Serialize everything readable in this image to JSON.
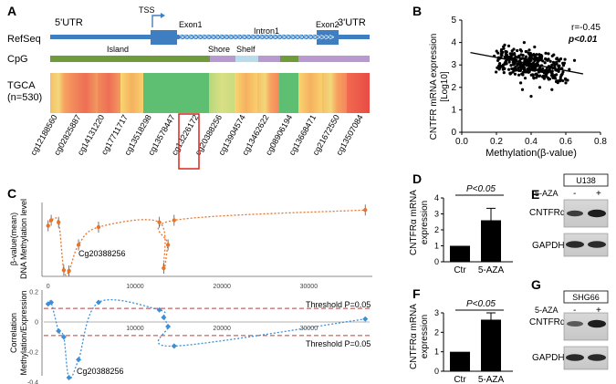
{
  "panel_labels": {
    "a": "A",
    "b": "B",
    "c": "C",
    "d": "D",
    "e": "E",
    "f": "F",
    "g": "G"
  },
  "panel_a": {
    "utr5": "5'UTR",
    "utr3": "3'UTR",
    "tss": "TSS",
    "exon1": "Exon1",
    "intron1": "Intron1",
    "exon2": "Exon2",
    "row_refseq": "RefSeq",
    "row_cpg": "CpG",
    "row_tgca_line1": "TGCA",
    "row_tgca_line2": "(n=530)",
    "cpg_island": "Island",
    "cpg_shore": "Shore",
    "cpg_shelf": "Shelf",
    "probes": [
      "cg12188560",
      "cg02825887",
      "cg14131220",
      "cg17711717",
      "cg13518298",
      "cg13578447",
      "cg13226172",
      "cg20388256",
      "cg13904574",
      "cg13462622",
      "cg08906194",
      "cg13668471",
      "cg21672550",
      "cg13507084"
    ],
    "highlighted_probe": "cg20388256",
    "colors": {
      "gene_blue": "#3f7fc1",
      "island": "#6f9b3a",
      "shore": "#b89ad1",
      "shelf": "#b7dcec",
      "highlight": "#d9261c"
    }
  },
  "panel_b": {
    "stat_r": "r=-0.45",
    "stat_p": "p<0.01",
    "chart_data": {
      "type": "scatter",
      "xlabel": "Methylation(β-value)",
      "ylabel_line1": "CNTFR mRNA expression",
      "ylabel_line2": "[Log10]",
      "xlim": [
        0.0,
        0.8
      ],
      "ylim": [
        0,
        5
      ],
      "x_ticks": [
        "0.0",
        "0.2",
        "0.4",
        "0.6",
        "0.8"
      ],
      "y_ticks": [
        "0",
        "1",
        "2",
        "3",
        "4",
        "5"
      ],
      "fit_line": {
        "x": [
          0.05,
          0.7
        ],
        "y": [
          3.55,
          2.6
        ]
      },
      "points": [
        [
          0.22,
          3.3
        ],
        [
          0.25,
          3.1
        ],
        [
          0.28,
          3.5
        ],
        [
          0.3,
          3.2
        ],
        [
          0.31,
          2.9
        ],
        [
          0.33,
          3.4
        ],
        [
          0.34,
          3.0
        ],
        [
          0.35,
          3.3
        ],
        [
          0.36,
          2.8
        ],
        [
          0.37,
          3.6
        ],
        [
          0.38,
          3.1
        ],
        [
          0.39,
          2.7
        ],
        [
          0.4,
          3.2
        ],
        [
          0.41,
          2.9
        ],
        [
          0.42,
          3.4
        ],
        [
          0.43,
          2.6
        ],
        [
          0.44,
          3.0
        ],
        [
          0.45,
          2.8
        ],
        [
          0.46,
          3.3
        ],
        [
          0.47,
          2.5
        ],
        [
          0.48,
          3.1
        ],
        [
          0.5,
          2.7
        ],
        [
          0.52,
          3.0
        ],
        [
          0.54,
          2.4
        ],
        [
          0.56,
          2.9
        ],
        [
          0.58,
          2.6
        ],
        [
          0.6,
          2.2
        ],
        [
          0.3,
          3.7
        ],
        [
          0.36,
          4.0
        ],
        [
          0.42,
          3.8
        ],
        [
          0.28,
          2.6
        ],
        [
          0.34,
          2.2
        ],
        [
          0.4,
          1.6
        ],
        [
          0.45,
          2.0
        ],
        [
          0.52,
          1.9
        ],
        [
          0.62,
          2.8
        ],
        [
          0.65,
          3.2
        ],
        [
          0.35,
          1.9
        ],
        [
          0.5,
          3.5
        ],
        [
          0.55,
          3.3
        ]
      ]
    }
  },
  "panel_c": {
    "top_ylabel_line1": "β-value(mean)",
    "top_ylabel_line2": "DNA Methylation level",
    "bottom_ylabel_line1": "Correlation",
    "bottom_ylabel_line2": "Methylation/Expression",
    "annotation_top": "Cg20388256",
    "annotation_bottom": "Cg20388256",
    "threshold_upper": "Threshold P=0.05",
    "threshold_lower": "Threshold P=0.05",
    "chart_data": [
      {
        "type": "line",
        "title": "",
        "xlabel": "",
        "ylabel": "β-value(mean) DNA Methylation level",
        "x_ticks": [
          "0",
          "10000",
          "20000",
          "30000"
        ],
        "xlim": [
          -500,
          37000
        ],
        "ylim": [
          0,
          1
        ],
        "x": [
          0,
          350,
          1200,
          1800,
          2400,
          3500,
          5800,
          12800,
          13300,
          13800,
          14500,
          36500
        ],
        "values": [
          0.7,
          0.78,
          0.75,
          0.05,
          0.04,
          0.42,
          0.68,
          0.75,
          0.08,
          0.42,
          0.78,
          0.93
        ]
      },
      {
        "type": "line",
        "title": "",
        "xlabel": "",
        "ylabel": "Correlation Methylation/Expression",
        "y_ticks": [
          "0.2",
          "0",
          "-0.2",
          "-0.4"
        ],
        "x_ticks": [
          "10000",
          "20000",
          "30000"
        ],
        "xlim": [
          -500,
          37000
        ],
        "ylim": [
          -0.42,
          0.23
        ],
        "threshold": [
          0.09,
          -0.09
        ],
        "x": [
          0,
          350,
          1200,
          1800,
          2400,
          3500,
          5800,
          12800,
          13300,
          13800,
          14500,
          36500
        ],
        "values": [
          0.12,
          0.13,
          -0.06,
          -0.1,
          -0.37,
          -0.25,
          0.13,
          0.08,
          0.03,
          -0.03,
          -0.16,
          0.02
        ]
      }
    ]
  },
  "panel_d": {
    "ylabel_line1": "CNTFRα mRNA",
    "ylabel_line2": "expression",
    "pvalue": "P<0.05",
    "chart_data": {
      "type": "bar",
      "categories": [
        "Ctr",
        "5-AZA"
      ],
      "values": [
        1.0,
        2.6
      ],
      "errors": [
        0,
        0.75
      ],
      "ylim": [
        0,
        4
      ],
      "y_ticks": [
        "0",
        "1",
        "2",
        "3",
        "4"
      ]
    }
  },
  "panel_f": {
    "ylabel_line1": "CNTFRα mRNA",
    "ylabel_line2": "expression",
    "pvalue": "P<0.05",
    "chart_data": {
      "type": "bar",
      "categories": [
        "Ctr",
        "5-AZA"
      ],
      "values": [
        1.0,
        2.65
      ],
      "errors": [
        0,
        0.35
      ],
      "ylim": [
        0,
        3
      ],
      "y_ticks": [
        "0",
        "1",
        "2",
        "3"
      ]
    }
  },
  "panel_e": {
    "cell_line": "U138",
    "treatment": "5-AZA",
    "minus": "-",
    "plus": "+",
    "band1": "CNTFRα",
    "band2": "GAPDH"
  },
  "panel_g": {
    "cell_line": "SHG66",
    "treatment": "5-AZA",
    "minus": "-",
    "plus": "+",
    "band1": "CNTFRα",
    "band2": "GAPDH"
  }
}
